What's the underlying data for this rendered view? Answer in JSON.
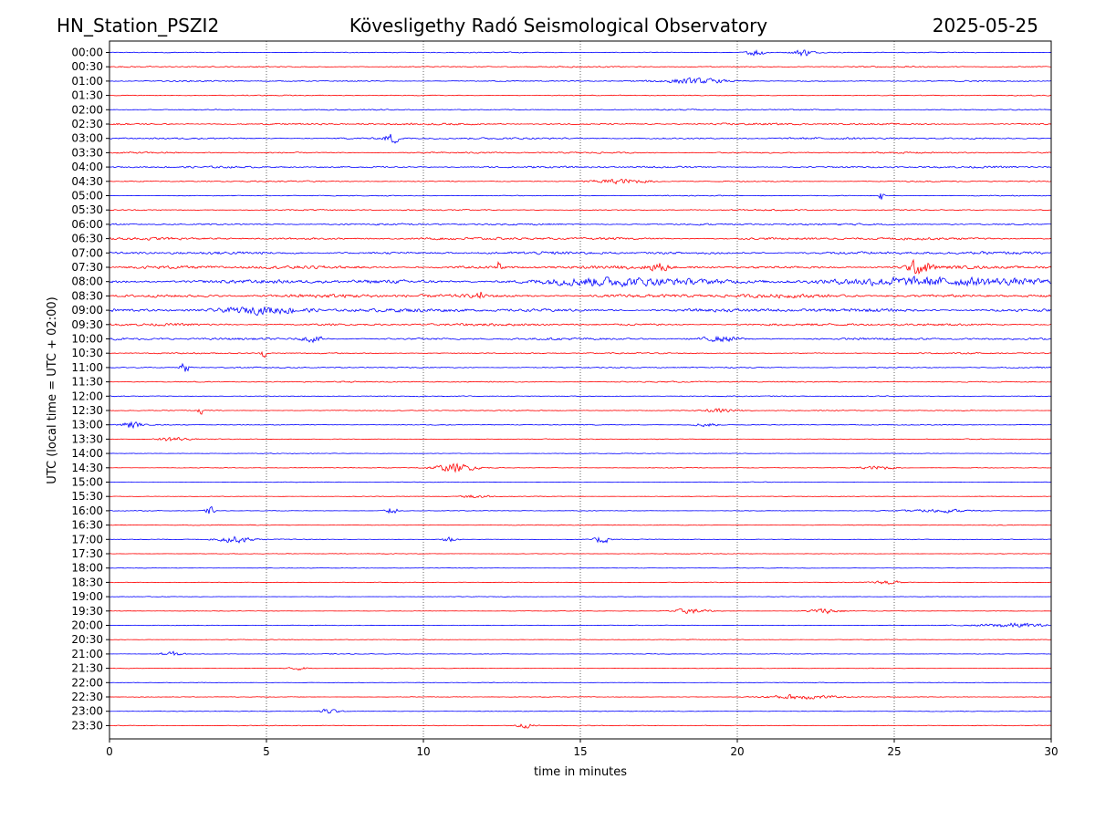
{
  "header": {
    "station": "HN_Station_PSZI2",
    "observatory": "Kövesligethy Radó Seismological Observatory",
    "date": "2025-05-25"
  },
  "colors": {
    "trace_a": "#0000ff",
    "trace_b": "#ff0000",
    "axis": "#000000"
  },
  "chart_data": {
    "type": "line",
    "title": "Kövesligethy Radó Seismological Observatory",
    "xlabel": "time in minutes",
    "ylabel": "UTC (local time = UTC + 02:00)",
    "xlim": [
      0,
      30
    ],
    "xticks": [
      0,
      5,
      10,
      15,
      20,
      25,
      30
    ],
    "grid": "vertical dotted at 5-minute intervals",
    "rows": [
      "00:00",
      "00:30",
      "01:00",
      "01:30",
      "02:00",
      "02:30",
      "03:00",
      "03:30",
      "04:00",
      "04:30",
      "05:00",
      "05:30",
      "06:00",
      "06:30",
      "07:00",
      "07:30",
      "08:00",
      "08:30",
      "09:00",
      "09:30",
      "10:00",
      "10:30",
      "11:00",
      "11:30",
      "12:00",
      "12:30",
      "13:00",
      "13:30",
      "14:00",
      "14:30",
      "15:00",
      "15:30",
      "16:00",
      "16:30",
      "17:00",
      "17:30",
      "18:00",
      "18:30",
      "19:00",
      "19:30",
      "20:00",
      "20:30",
      "21:00",
      "21:30",
      "22:00",
      "22:30",
      "23:00",
      "23:30"
    ],
    "base_noise": [
      0.15,
      0.2,
      0.2,
      0.15,
      0.2,
      0.3,
      0.3,
      0.25,
      0.3,
      0.2,
      0.15,
      0.2,
      0.3,
      0.4,
      0.45,
      0.5,
      0.6,
      0.6,
      0.55,
      0.4,
      0.35,
      0.2,
      0.2,
      0.2,
      0.15,
      0.15,
      0.15,
      0.12,
      0.1,
      0.1,
      0.1,
      0.1,
      0.1,
      0.12,
      0.12,
      0.1,
      0.08,
      0.1,
      0.08,
      0.08,
      0.1,
      0.1,
      0.1,
      0.1,
      0.1,
      0.1,
      0.1,
      0.12
    ],
    "events": [
      {
        "row": 0,
        "t": 20.6,
        "amp": 1.4,
        "dur": 0.4
      },
      {
        "row": 0,
        "t": 22.1,
        "amp": 1.4,
        "dur": 0.4
      },
      {
        "row": 2,
        "t": 18.7,
        "amp": 1.0,
        "dur": 1.5
      },
      {
        "row": 6,
        "t": 9.0,
        "amp": 2.0,
        "dur": 0.3
      },
      {
        "row": 9,
        "t": 16.3,
        "amp": 0.8,
        "dur": 1.2
      },
      {
        "row": 10,
        "t": 24.6,
        "amp": 2.5,
        "dur": 0.1
      },
      {
        "row": 15,
        "t": 12.4,
        "amp": 2.5,
        "dur": 0.1
      },
      {
        "row": 15,
        "t": 17.5,
        "amp": 1.5,
        "dur": 0.4
      },
      {
        "row": 15,
        "t": 25.8,
        "amp": 2.8,
        "dur": 0.5
      },
      {
        "row": 16,
        "t": 16.0,
        "amp": 1.5,
        "dur": 3.0
      },
      {
        "row": 16,
        "t": 26.0,
        "amp": 1.5,
        "dur": 4.0
      },
      {
        "row": 17,
        "t": 11.8,
        "amp": 2.0,
        "dur": 0.1
      },
      {
        "row": 18,
        "t": 5.0,
        "amp": 1.2,
        "dur": 2.0
      },
      {
        "row": 20,
        "t": 6.5,
        "amp": 1.2,
        "dur": 0.5
      },
      {
        "row": 20,
        "t": 19.5,
        "amp": 1.0,
        "dur": 0.8
      },
      {
        "row": 21,
        "t": 4.9,
        "amp": 2.0,
        "dur": 0.1
      },
      {
        "row": 22,
        "t": 2.4,
        "amp": 2.2,
        "dur": 0.2
      },
      {
        "row": 25,
        "t": 2.9,
        "amp": 2.0,
        "dur": 0.1
      },
      {
        "row": 25,
        "t": 19.5,
        "amp": 0.8,
        "dur": 0.8
      },
      {
        "row": 26,
        "t": 0.7,
        "amp": 1.4,
        "dur": 0.4
      },
      {
        "row": 26,
        "t": 19.0,
        "amp": 0.8,
        "dur": 0.5
      },
      {
        "row": 27,
        "t": 2.0,
        "amp": 0.9,
        "dur": 0.6
      },
      {
        "row": 29,
        "t": 11.0,
        "amp": 1.6,
        "dur": 1.0
      },
      {
        "row": 29,
        "t": 24.5,
        "amp": 0.8,
        "dur": 0.8
      },
      {
        "row": 31,
        "t": 11.7,
        "amp": 0.8,
        "dur": 0.6
      },
      {
        "row": 32,
        "t": 3.2,
        "amp": 1.6,
        "dur": 0.2
      },
      {
        "row": 32,
        "t": 9.0,
        "amp": 1.6,
        "dur": 0.3
      },
      {
        "row": 32,
        "t": 26.5,
        "amp": 0.6,
        "dur": 1.5
      },
      {
        "row": 34,
        "t": 4.0,
        "amp": 1.3,
        "dur": 0.8
      },
      {
        "row": 34,
        "t": 10.8,
        "amp": 1.3,
        "dur": 0.3
      },
      {
        "row": 34,
        "t": 15.7,
        "amp": 1.8,
        "dur": 0.3
      },
      {
        "row": 37,
        "t": 24.8,
        "amp": 0.8,
        "dur": 0.6
      },
      {
        "row": 39,
        "t": 18.5,
        "amp": 1.0,
        "dur": 0.8
      },
      {
        "row": 39,
        "t": 22.8,
        "amp": 1.0,
        "dur": 0.8
      },
      {
        "row": 40,
        "t": 28.8,
        "amp": 0.9,
        "dur": 1.5
      },
      {
        "row": 42,
        "t": 2.0,
        "amp": 0.9,
        "dur": 0.5
      },
      {
        "row": 43,
        "t": 6.0,
        "amp": 0.7,
        "dur": 0.4
      },
      {
        "row": 45,
        "t": 22.0,
        "amp": 1.0,
        "dur": 1.5
      },
      {
        "row": 46,
        "t": 7.0,
        "amp": 1.1,
        "dur": 0.4
      },
      {
        "row": 47,
        "t": 13.2,
        "amp": 0.9,
        "dur": 0.5
      }
    ]
  }
}
